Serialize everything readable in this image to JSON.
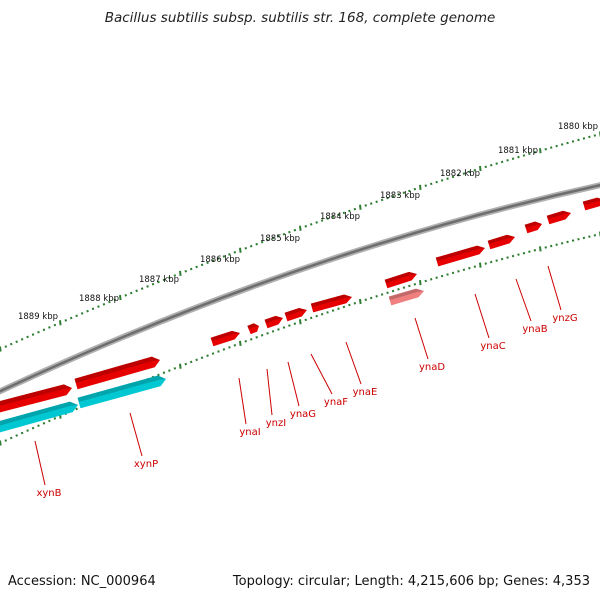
{
  "title": "Bacillus subtilis subsp. subtilis str. 168, complete genome",
  "footer": {
    "accession": "Accession: NC_000964",
    "info": "Topology: circular; Length: 4,215,606 bp; Genes: 4,353"
  },
  "colors": {
    "backbone": "#808080",
    "ticks": "#2e7d32",
    "gene_forward": "#e60000",
    "gene_reverse": "#00c8d2",
    "gene_faded": "#f08080",
    "label": "#cc0000"
  },
  "scale": {
    "unit": "kbp",
    "labels": [
      "1880 kbp",
      "1881 kbp",
      "1882 kbp",
      "1883 kbp",
      "1884 kbp",
      "1885 kbp",
      "1886 kbp",
      "1887 kbp",
      "1888 kbp",
      "1889 kbp"
    ]
  },
  "genes": [
    {
      "name": "xynB",
      "kind": "forward",
      "also_reverse": true
    },
    {
      "name": "xynP",
      "kind": "forward",
      "also_reverse": true
    },
    {
      "name": "ynaI",
      "kind": "forward"
    },
    {
      "name": "ynzI",
      "kind": "forward"
    },
    {
      "name": "ynaG",
      "kind": "forward"
    },
    {
      "name": "ynaF",
      "kind": "forward"
    },
    {
      "name": "ynaE",
      "kind": "forward"
    },
    {
      "name": "ynaD",
      "kind": "forward",
      "also_faded": true
    },
    {
      "name": "ynaC",
      "kind": "forward"
    },
    {
      "name": "ynaB",
      "kind": "forward"
    },
    {
      "name": "ynzG",
      "kind": "forward"
    }
  ]
}
